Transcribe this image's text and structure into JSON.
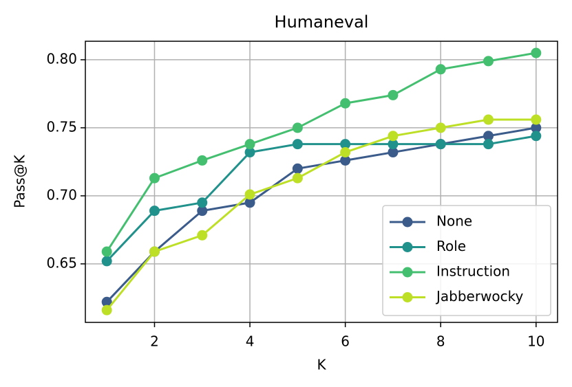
{
  "chart_data": {
    "type": "line",
    "title": "Humaneval",
    "x_label": "K",
    "y_label": "Pass@K",
    "x": [
      1,
      2,
      3,
      4,
      5,
      6,
      7,
      8,
      9,
      10
    ],
    "series": [
      {
        "name": "None",
        "color": "#3b5b8b",
        "values": [
          0.622,
          0.659,
          0.689,
          0.695,
          0.72,
          0.726,
          0.732,
          0.738,
          0.744,
          0.75
        ]
      },
      {
        "name": "Role",
        "color": "#21918c",
        "values": [
          0.652,
          0.689,
          0.695,
          0.732,
          0.738,
          0.738,
          0.738,
          0.738,
          0.738,
          0.744
        ]
      },
      {
        "name": "Instruction",
        "color": "#44bf70",
        "values": [
          0.659,
          0.713,
          0.726,
          0.738,
          0.75,
          0.768,
          0.774,
          0.793,
          0.799,
          0.805
        ]
      },
      {
        "name": "Jabberwocky",
        "color": "#bddf26",
        "values": [
          0.616,
          0.659,
          0.671,
          0.701,
          0.713,
          0.732,
          0.744,
          0.75,
          0.756,
          0.756
        ]
      }
    ],
    "xlim": [
      0.55,
      10.45
    ],
    "xticks": [
      2,
      4,
      6,
      8,
      10
    ],
    "ylim": [
      0.607,
      0.8136
    ],
    "yticks": [
      {
        "value": 0.65,
        "label": "0.65"
      },
      {
        "value": 0.7,
        "label": "0.70"
      },
      {
        "value": 0.75,
        "label": "0.75"
      },
      {
        "value": 0.8,
        "label": "0.80"
      }
    ],
    "grid": true,
    "legend": "lower right"
  }
}
